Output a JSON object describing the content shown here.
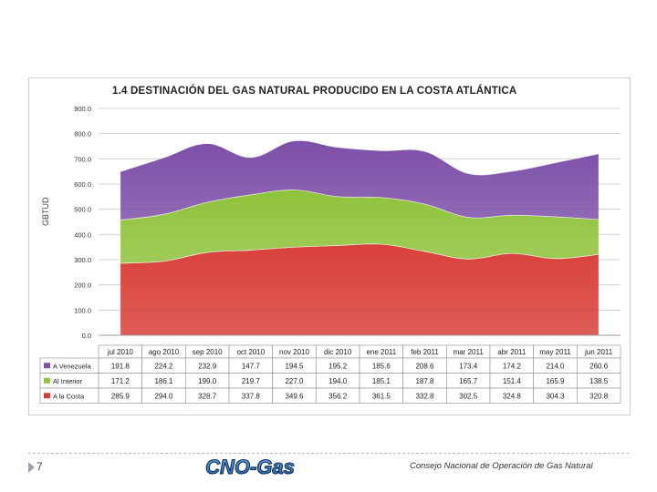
{
  "slide": {
    "page_number": "7",
    "logo_text": "CNO-Gas",
    "footer_text": "Consejo Nacional de Operación de Gas Natural"
  },
  "chart_data": {
    "type": "area",
    "stacked": true,
    "title": "1.4   DESTINACIÓN DEL GAS NATURAL PRODUCIDO EN LA COSTA ATLÁNTICA",
    "ylabel": "GBTUD",
    "ylim": [
      0,
      900
    ],
    "yticks": [
      "0.0",
      "100.0",
      "200.0",
      "300.0",
      "400.0",
      "500.0",
      "600.0",
      "700.0",
      "800.0",
      "900.0"
    ],
    "grid": true,
    "legend": "table-left",
    "categories": [
      "jul 2010",
      "ago 2010",
      "sep 2010",
      "oct 2010",
      "nov 2010",
      "dic 2010",
      "ene 2011",
      "feb 2011",
      "mar 2011",
      "abr 2011",
      "may 2011",
      "jun 2011"
    ],
    "series": [
      {
        "name": "A la Costa",
        "color": "#d9403a",
        "values": [
          285.9,
          294.0,
          328.7,
          337.8,
          349.6,
          356.2,
          361.5,
          332.8,
          302.5,
          324.8,
          304.3,
          320.8
        ],
        "labels": [
          "285.9",
          "294.0",
          "328.7",
          "337.8",
          "349.6",
          "356.2",
          "361.5",
          "332.8",
          "302.5",
          "324.8",
          "304.3",
          "320.8"
        ]
      },
      {
        "name": "Al Interior",
        "color": "#8fc33c",
        "values": [
          171.2,
          186.1,
          199.0,
          219.7,
          227.0,
          194.0,
          185.1,
          187.8,
          165.7,
          151.4,
          165.9,
          138.5
        ],
        "labels": [
          "171.2",
          "186.1",
          "199.0",
          "219.7",
          "227.0",
          "194.0",
          "185.1",
          "187.8",
          "165.7",
          "151.4",
          "165.9",
          "138.5"
        ]
      },
      {
        "name": "A Venezuela",
        "color": "#7c4fa8",
        "values": [
          191.8,
          224.2,
          232.9,
          147.7,
          194.5,
          195.2,
          185.6,
          208.6,
          173.4,
          174.2,
          214.0,
          260.6
        ],
        "labels": [
          "191.8",
          "224.2",
          "232.9",
          "147.7",
          "194.5",
          "195.2",
          "185.6",
          "208.6",
          "173.4",
          "174.2",
          "214.0",
          "260.6"
        ]
      }
    ]
  }
}
